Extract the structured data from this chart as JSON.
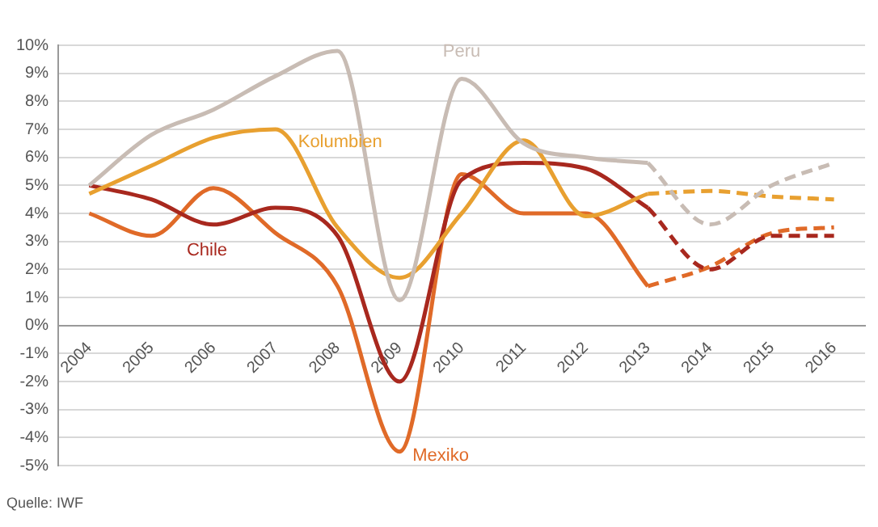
{
  "chart_data": {
    "type": "line",
    "categories": [
      "2004",
      "2005",
      "2006",
      "2007",
      "2008",
      "2009",
      "2010",
      "2011",
      "2012",
      "2013",
      "2014",
      "2015",
      "2016"
    ],
    "ylim": [
      -5,
      10
    ],
    "yticks": [
      {
        "value": -5,
        "label": "-5%"
      },
      {
        "value": -4,
        "label": "-4%"
      },
      {
        "value": -3,
        "label": "-3%"
      },
      {
        "value": -2,
        "label": "-2%"
      },
      {
        "value": -1,
        "label": "-1%"
      },
      {
        "value": 0,
        "label": "0%"
      },
      {
        "value": 1,
        "label": "1%"
      },
      {
        "value": 2,
        "label": "2%"
      },
      {
        "value": 3,
        "label": "3%"
      },
      {
        "value": 4,
        "label": "4%"
      },
      {
        "value": 5,
        "label": "5%"
      },
      {
        "value": 6,
        "label": "6%"
      },
      {
        "value": 7,
        "label": "7%"
      },
      {
        "value": 8,
        "label": "8%"
      },
      {
        "value": 9,
        "label": "9%"
      },
      {
        "value": 10,
        "label": "10%"
      }
    ],
    "grid": "y",
    "legend": false,
    "marker": "none",
    "series": [
      {
        "name": "Peru",
        "color": "#c8bcb4",
        "line_style": "solid",
        "values": [
          5.0,
          6.8,
          7.7,
          8.9,
          9.8,
          0.9,
          8.8,
          6.5,
          6.0,
          5.8,
          null,
          null,
          null
        ]
      },
      {
        "color": "#c8bcb4",
        "line_style": "dashed",
        "values": [
          null,
          null,
          null,
          null,
          null,
          null,
          null,
          null,
          null,
          5.8,
          3.6,
          5.0,
          5.8
        ]
      },
      {
        "name": "Kolumbien",
        "color": "#e8a030",
        "line_style": "solid",
        "values": [
          4.7,
          5.7,
          6.7,
          7.0,
          3.5,
          1.7,
          4.0,
          6.6,
          3.9,
          4.7,
          null,
          null,
          null
        ]
      },
      {
        "color": "#e8a030",
        "line_style": "dashed",
        "values": [
          null,
          null,
          null,
          null,
          null,
          null,
          null,
          null,
          null,
          4.7,
          4.8,
          4.6,
          4.5
        ]
      },
      {
        "name": "Chile",
        "color": "#a8281e",
        "line_style": "solid",
        "values": [
          5.0,
          4.5,
          3.6,
          4.2,
          3.2,
          -2.0,
          5.2,
          5.8,
          5.6,
          4.2,
          null,
          null,
          null
        ]
      },
      {
        "color": "#a8281e",
        "line_style": "dashed",
        "values": [
          null,
          null,
          null,
          null,
          null,
          null,
          null,
          null,
          null,
          4.2,
          2.0,
          3.2,
          3.2
        ]
      },
      {
        "name": "Mexiko",
        "color": "#e06a28",
        "line_style": "solid",
        "values": [
          4.0,
          3.2,
          4.9,
          3.3,
          1.4,
          -4.5,
          5.4,
          4.0,
          4.0,
          1.4,
          null,
          null,
          null
        ]
      },
      {
        "color": "#e06a28",
        "line_style": "dashed",
        "values": [
          null,
          null,
          null,
          null,
          null,
          null,
          null,
          null,
          null,
          1.4,
          2.1,
          3.3,
          3.5
        ]
      }
    ],
    "annotations": [
      "Quelle: IWF"
    ]
  }
}
